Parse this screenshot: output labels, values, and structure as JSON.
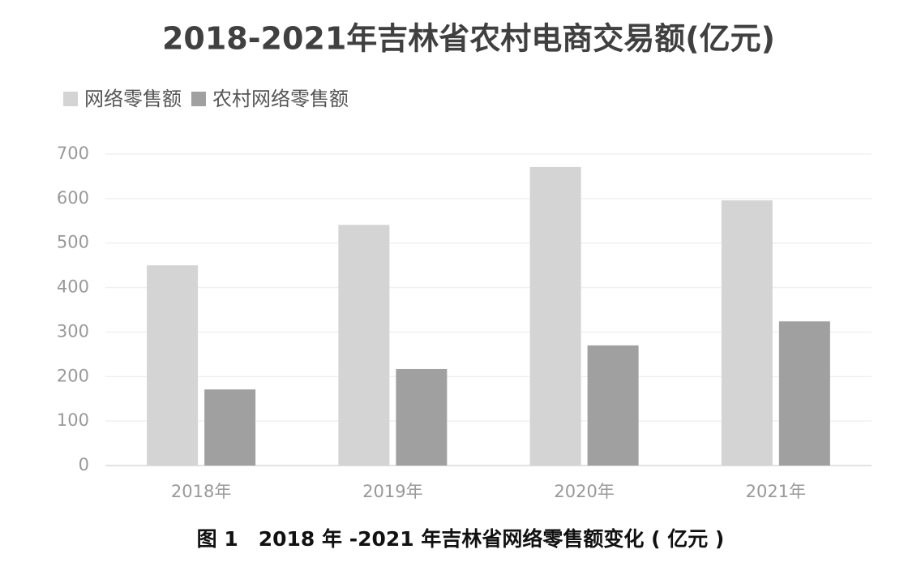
{
  "chart_data": {
    "type": "bar",
    "title": "2018-2021年吉林省农村电商交易额(亿元)",
    "caption": "图 1　2018 年 -2021 年吉林省网络零售额变化 ( 亿元 )",
    "categories": [
      "2018年",
      "2019年",
      "2020年",
      "2021年"
    ],
    "series": [
      {
        "name": "网络零售额",
        "color": "#d4d4d4",
        "values": [
          450,
          541,
          671,
          596
        ]
      },
      {
        "name": "农村网络零售额",
        "color": "#a0a0a0",
        "values": [
          171,
          217,
          270,
          324
        ]
      }
    ],
    "ylim": [
      0,
      700
    ],
    "yticks": [
      0,
      100,
      200,
      300,
      400,
      500,
      600,
      700
    ],
    "grid": true,
    "legend": "top-left"
  }
}
